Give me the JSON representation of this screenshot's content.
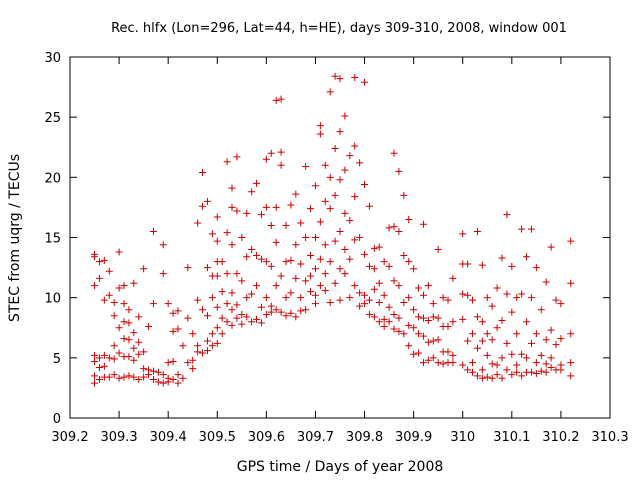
{
  "chart_data": {
    "type": "scatter",
    "title": "Rec. hlfx (Lon=296, Lat=44, h=HE), days 309-310, 2008, window 001",
    "xlabel": "GPS time / Days of year 2008",
    "ylabel": "STEC from uqrg / TECUs",
    "xlim": [
      309.2,
      310.3
    ],
    "ylim": [
      0,
      30
    ],
    "xticks": [
      309.2,
      309.3,
      309.4,
      309.5,
      309.6,
      309.7,
      309.8,
      309.9,
      310,
      310.1,
      310.2,
      310.3
    ],
    "xtick_labels": [
      "309.2",
      "309.3",
      "309.4",
      "309.5",
      "309.6",
      "309.7",
      "309.8",
      "309.9",
      "310",
      "310.1",
      "310.2",
      "310.3"
    ],
    "yticks": [
      0,
      5,
      10,
      15,
      20,
      25,
      30
    ],
    "ytick_labels": [
      "0",
      "5",
      "10",
      "15",
      "20",
      "25",
      "30"
    ],
    "grid": false,
    "marker": "+",
    "color": "#cc0000",
    "points": [
      [
        309.25,
        13.6
      ],
      [
        309.25,
        13.4
      ],
      [
        309.25,
        11.0
      ],
      [
        309.25,
        5.2
      ],
      [
        309.25,
        4.7
      ],
      [
        309.25,
        3.5
      ],
      [
        309.25,
        2.9
      ],
      [
        309.26,
        13.0
      ],
      [
        309.26,
        11.6
      ],
      [
        309.26,
        5.0
      ],
      [
        309.26,
        4.2
      ],
      [
        309.26,
        3.2
      ],
      [
        309.27,
        13.1
      ],
      [
        309.27,
        9.8
      ],
      [
        309.27,
        5.2
      ],
      [
        309.27,
        4.3
      ],
      [
        309.27,
        3.4
      ],
      [
        309.28,
        12.2
      ],
      [
        309.28,
        10.2
      ],
      [
        309.28,
        5.0
      ],
      [
        309.28,
        3.4
      ],
      [
        309.29,
        9.6
      ],
      [
        309.29,
        8.5
      ],
      [
        309.29,
        6.0
      ],
      [
        309.29,
        4.9
      ],
      [
        309.29,
        3.6
      ],
      [
        309.3,
        13.8
      ],
      [
        309.3,
        10.8
      ],
      [
        309.3,
        7.5
      ],
      [
        309.3,
        5.4
      ],
      [
        309.3,
        3.3
      ],
      [
        309.31,
        11.0
      ],
      [
        309.31,
        9.5
      ],
      [
        309.31,
        8.0
      ],
      [
        309.31,
        6.6
      ],
      [
        309.31,
        5.1
      ],
      [
        309.31,
        3.4
      ],
      [
        309.32,
        9.0
      ],
      [
        309.32,
        7.9
      ],
      [
        309.32,
        6.5
      ],
      [
        309.32,
        5.1
      ],
      [
        309.32,
        3.5
      ],
      [
        309.33,
        11.2
      ],
      [
        309.33,
        7.1
      ],
      [
        309.33,
        5.8
      ],
      [
        309.33,
        4.8
      ],
      [
        309.33,
        3.4
      ],
      [
        309.34,
        8.4
      ],
      [
        309.34,
        6.3
      ],
      [
        309.34,
        5.3
      ],
      [
        309.34,
        3.2
      ],
      [
        309.35,
        12.4
      ],
      [
        309.35,
        5.5
      ],
      [
        309.35,
        4.1
      ],
      [
        309.35,
        3.4
      ],
      [
        309.36,
        7.6
      ],
      [
        309.36,
        4.0
      ],
      [
        309.36,
        3.6
      ],
      [
        309.37,
        15.5
      ],
      [
        309.37,
        9.5
      ],
      [
        309.37,
        3.9
      ],
      [
        309.37,
        3.2
      ],
      [
        309.38,
        3.8
      ],
      [
        309.38,
        3.0
      ],
      [
        309.39,
        14.4
      ],
      [
        309.39,
        12.0
      ],
      [
        309.39,
        3.6
      ],
      [
        309.39,
        2.9
      ],
      [
        309.4,
        9.5
      ],
      [
        309.4,
        4.6
      ],
      [
        309.4,
        3.3
      ],
      [
        309.4,
        3.0
      ],
      [
        309.41,
        8.7
      ],
      [
        309.41,
        7.2
      ],
      [
        309.41,
        4.7
      ],
      [
        309.41,
        3.2
      ],
      [
        309.42,
        8.9
      ],
      [
        309.42,
        7.4
      ],
      [
        309.42,
        3.6
      ],
      [
        309.42,
        2.9
      ],
      [
        309.43,
        6.0
      ],
      [
        309.43,
        3.3
      ],
      [
        309.44,
        12.5
      ],
      [
        309.44,
        8.3
      ],
      [
        309.44,
        4.6
      ],
      [
        309.45,
        7.0
      ],
      [
        309.45,
        4.8
      ],
      [
        309.45,
        4.1
      ],
      [
        309.46,
        16.2
      ],
      [
        309.46,
        9.8
      ],
      [
        309.46,
        6.0
      ],
      [
        309.46,
        5.5
      ],
      [
        309.47,
        20.4
      ],
      [
        309.47,
        17.6
      ],
      [
        309.47,
        9.0
      ],
      [
        309.47,
        5.4
      ],
      [
        309.48,
        18.0
      ],
      [
        309.48,
        12.5
      ],
      [
        309.48,
        8.5
      ],
      [
        309.48,
        6.4
      ],
      [
        309.48,
        5.6
      ],
      [
        309.49,
        15.3
      ],
      [
        309.49,
        11.8
      ],
      [
        309.49,
        10.0
      ],
      [
        309.49,
        7.0
      ],
      [
        309.49,
        6.0
      ],
      [
        309.5,
        16.7
      ],
      [
        309.5,
        14.7
      ],
      [
        309.5,
        13.0
      ],
      [
        309.5,
        11.8
      ],
      [
        309.5,
        9.2
      ],
      [
        309.5,
        7.5
      ],
      [
        309.5,
        6.2
      ],
      [
        309.51,
        13.0
      ],
      [
        309.51,
        10.5
      ],
      [
        309.51,
        8.3
      ],
      [
        309.51,
        7.0
      ],
      [
        309.52,
        21.3
      ],
      [
        309.52,
        15.4
      ],
      [
        309.52,
        12.0
      ],
      [
        309.52,
        9.5
      ],
      [
        309.52,
        8.0
      ],
      [
        309.53,
        19.1
      ],
      [
        309.53,
        17.5
      ],
      [
        309.53,
        14.4
      ],
      [
        309.53,
        10.4
      ],
      [
        309.53,
        9.0
      ],
      [
        309.53,
        7.7
      ],
      [
        309.54,
        21.7
      ],
      [
        309.54,
        17.2
      ],
      [
        309.54,
        12.0
      ],
      [
        309.54,
        9.4
      ],
      [
        309.54,
        8.3
      ],
      [
        309.55,
        15.0
      ],
      [
        309.55,
        11.4
      ],
      [
        309.55,
        8.6
      ],
      [
        309.55,
        7.8
      ],
      [
        309.56,
        17.0
      ],
      [
        309.56,
        13.4
      ],
      [
        309.56,
        10.0
      ],
      [
        309.56,
        8.4
      ],
      [
        309.57,
        18.8
      ],
      [
        309.57,
        14.0
      ],
      [
        309.57,
        10.3
      ],
      [
        309.57,
        8.0
      ],
      [
        309.58,
        19.5
      ],
      [
        309.58,
        13.5
      ],
      [
        309.58,
        11.0
      ],
      [
        309.58,
        8.2
      ],
      [
        309.59,
        16.9
      ],
      [
        309.59,
        13.2
      ],
      [
        309.59,
        9.2
      ],
      [
        309.59,
        7.9
      ],
      [
        309.6,
        21.5
      ],
      [
        309.6,
        17.5
      ],
      [
        309.6,
        13.0
      ],
      [
        309.6,
        10.0
      ],
      [
        309.6,
        8.6
      ],
      [
        309.61,
        22.0
      ],
      [
        309.61,
        16.0
      ],
      [
        309.61,
        12.6
      ],
      [
        309.61,
        9.3
      ],
      [
        309.61,
        8.8
      ],
      [
        309.62,
        26.4
      ],
      [
        309.62,
        17.5
      ],
      [
        309.62,
        14.6
      ],
      [
        309.62,
        11.0
      ],
      [
        309.62,
        9.0
      ],
      [
        309.63,
        26.5
      ],
      [
        309.63,
        22.1
      ],
      [
        309.63,
        21.0
      ],
      [
        309.63,
        11.8
      ],
      [
        309.63,
        8.8
      ],
      [
        309.64,
        16.0
      ],
      [
        309.64,
        13.0
      ],
      [
        309.64,
        10.0
      ],
      [
        309.64,
        8.5
      ],
      [
        309.65,
        17.7
      ],
      [
        309.65,
        13.1
      ],
      [
        309.65,
        10.4
      ],
      [
        309.65,
        8.7
      ],
      [
        309.66,
        18.6
      ],
      [
        309.66,
        14.4
      ],
      [
        309.66,
        11.6
      ],
      [
        309.66,
        8.4
      ],
      [
        309.67,
        16.2
      ],
      [
        309.67,
        12.8
      ],
      [
        309.67,
        10.0
      ],
      [
        309.67,
        8.9
      ],
      [
        309.68,
        20.9
      ],
      [
        309.68,
        15.0
      ],
      [
        309.68,
        11.4
      ],
      [
        309.68,
        9.0
      ],
      [
        309.69,
        17.4
      ],
      [
        309.69,
        13.5
      ],
      [
        309.69,
        11.8
      ],
      [
        309.69,
        10.5
      ],
      [
        309.7,
        19.3
      ],
      [
        309.7,
        15.0
      ],
      [
        309.7,
        12.4
      ],
      [
        309.7,
        10.2
      ],
      [
        309.7,
        9.5
      ],
      [
        309.71,
        24.3
      ],
      [
        309.71,
        23.6
      ],
      [
        309.71,
        16.3
      ],
      [
        309.71,
        13.2
      ],
      [
        309.71,
        11.0
      ],
      [
        309.72,
        21.0
      ],
      [
        309.72,
        18.0
      ],
      [
        309.72,
        14.4
      ],
      [
        309.72,
        12.0
      ],
      [
        309.72,
        10.6
      ],
      [
        309.73,
        27.1
      ],
      [
        309.73,
        20.0
      ],
      [
        309.73,
        17.4
      ],
      [
        309.73,
        13.0
      ],
      [
        309.73,
        9.6
      ],
      [
        309.74,
        28.4
      ],
      [
        309.74,
        22.4
      ],
      [
        309.74,
        18.5
      ],
      [
        309.74,
        14.7
      ],
      [
        309.74,
        11.2
      ],
      [
        309.75,
        28.2
      ],
      [
        309.75,
        23.8
      ],
      [
        309.75,
        19.8
      ],
      [
        309.75,
        15.5
      ],
      [
        309.75,
        12.4
      ],
      [
        309.75,
        9.8
      ],
      [
        309.76,
        25.1
      ],
      [
        309.76,
        20.6
      ],
      [
        309.76,
        17.0
      ],
      [
        309.76,
        14.0
      ],
      [
        309.76,
        12.0
      ],
      [
        309.77,
        21.8
      ],
      [
        309.77,
        16.4
      ],
      [
        309.77,
        13.2
      ],
      [
        309.77,
        10.0
      ],
      [
        309.78,
        28.3
      ],
      [
        309.78,
        22.6
      ],
      [
        309.78,
        18.4
      ],
      [
        309.78,
        14.8
      ],
      [
        309.78,
        11.0
      ],
      [
        309.79,
        21.2
      ],
      [
        309.79,
        15.0
      ],
      [
        309.79,
        10.4
      ],
      [
        309.79,
        9.3
      ],
      [
        309.8,
        27.9
      ],
      [
        309.8,
        19.4
      ],
      [
        309.8,
        13.6
      ],
      [
        309.8,
        10.2
      ],
      [
        309.8,
        9.5
      ],
      [
        309.81,
        17.6
      ],
      [
        309.81,
        12.6
      ],
      [
        309.81,
        9.8
      ],
      [
        309.81,
        8.6
      ],
      [
        309.82,
        14.1
      ],
      [
        309.82,
        12.4
      ],
      [
        309.82,
        10.7
      ],
      [
        309.82,
        8.4
      ],
      [
        309.83,
        14.2
      ],
      [
        309.83,
        11.2
      ],
      [
        309.83,
        9.6
      ],
      [
        309.83,
        8.0
      ],
      [
        309.84,
        13.0
      ],
      [
        309.84,
        10.2
      ],
      [
        309.84,
        8.2
      ],
      [
        309.84,
        7.6
      ],
      [
        309.85,
        15.8
      ],
      [
        309.85,
        12.6
      ],
      [
        309.85,
        9.2
      ],
      [
        309.85,
        8.0
      ],
      [
        309.86,
        22.0
      ],
      [
        309.86,
        15.9
      ],
      [
        309.86,
        11.4
      ],
      [
        309.86,
        8.6
      ],
      [
        309.86,
        7.4
      ],
      [
        309.87,
        20.5
      ],
      [
        309.87,
        15.5
      ],
      [
        309.87,
        11.0
      ],
      [
        309.87,
        8.3
      ],
      [
        309.87,
        7.2
      ],
      [
        309.88,
        18.5
      ],
      [
        309.88,
        13.5
      ],
      [
        309.88,
        9.6
      ],
      [
        309.88,
        7.0
      ],
      [
        309.89,
        16.5
      ],
      [
        309.89,
        13.0
      ],
      [
        309.89,
        10.0
      ],
      [
        309.89,
        7.7
      ],
      [
        309.89,
        6.0
      ],
      [
        309.9,
        12.4
      ],
      [
        309.9,
        9.0
      ],
      [
        309.9,
        7.5
      ],
      [
        309.9,
        5.3
      ],
      [
        309.91,
        10.8
      ],
      [
        309.91,
        8.4
      ],
      [
        309.91,
        7.0
      ],
      [
        309.91,
        5.4
      ],
      [
        309.92,
        16.1
      ],
      [
        309.92,
        10.2
      ],
      [
        309.92,
        8.3
      ],
      [
        309.92,
        6.8
      ],
      [
        309.92,
        4.6
      ],
      [
        309.93,
        11.0
      ],
      [
        309.93,
        8.1
      ],
      [
        309.93,
        6.3
      ],
      [
        309.93,
        4.8
      ],
      [
        309.94,
        9.5
      ],
      [
        309.94,
        8.4
      ],
      [
        309.94,
        6.4
      ],
      [
        309.94,
        5.0
      ],
      [
        309.95,
        14.0
      ],
      [
        309.95,
        8.3
      ],
      [
        309.95,
        6.5
      ],
      [
        309.95,
        4.6
      ],
      [
        309.96,
        10.0
      ],
      [
        309.96,
        7.6
      ],
      [
        309.96,
        5.5
      ],
      [
        309.96,
        4.5
      ],
      [
        309.97,
        9.8
      ],
      [
        309.97,
        7.6
      ],
      [
        309.97,
        5.5
      ],
      [
        309.97,
        4.6
      ],
      [
        309.98,
        11.6
      ],
      [
        309.98,
        8.0
      ],
      [
        309.98,
        5.2
      ],
      [
        309.98,
        4.6
      ],
      [
        310.0,
        15.3
      ],
      [
        310.0,
        12.8
      ],
      [
        310.0,
        10.3
      ],
      [
        310.0,
        8.2
      ],
      [
        310.0,
        4.4
      ],
      [
        310.01,
        12.8
      ],
      [
        310.01,
        10.2
      ],
      [
        310.01,
        6.4
      ],
      [
        310.01,
        4.0
      ],
      [
        310.02,
        9.8
      ],
      [
        310.02,
        7.0
      ],
      [
        310.02,
        4.6
      ],
      [
        310.02,
        3.8
      ],
      [
        310.03,
        15.5
      ],
      [
        310.03,
        8.4
      ],
      [
        310.03,
        5.8
      ],
      [
        310.03,
        3.5
      ],
      [
        310.04,
        12.7
      ],
      [
        310.04,
        8.0
      ],
      [
        310.04,
        6.4
      ],
      [
        310.04,
        4.0
      ],
      [
        310.04,
        3.3
      ],
      [
        310.05,
        10.0
      ],
      [
        310.05,
        7.0
      ],
      [
        310.05,
        5.2
      ],
      [
        310.05,
        3.4
      ],
      [
        310.06,
        9.3
      ],
      [
        310.06,
        6.5
      ],
      [
        310.06,
        4.5
      ],
      [
        310.06,
        3.3
      ],
      [
        310.07,
        10.8
      ],
      [
        310.07,
        7.5
      ],
      [
        310.07,
        4.4
      ],
      [
        310.07,
        3.6
      ],
      [
        310.08,
        13.3
      ],
      [
        310.08,
        8.1
      ],
      [
        310.08,
        5.0
      ],
      [
        310.08,
        3.3
      ],
      [
        310.09,
        16.9
      ],
      [
        310.09,
        10.3
      ],
      [
        310.09,
        6.2
      ],
      [
        310.09,
        4.0
      ],
      [
        310.1,
        12.6
      ],
      [
        310.1,
        8.8
      ],
      [
        310.1,
        5.3
      ],
      [
        310.1,
        3.6
      ],
      [
        310.11,
        10.0
      ],
      [
        310.11,
        7.0
      ],
      [
        310.11,
        4.4
      ],
      [
        310.11,
        3.8
      ],
      [
        310.12,
        15.7
      ],
      [
        310.12,
        10.3
      ],
      [
        310.12,
        5.3
      ],
      [
        310.12,
        3.5
      ],
      [
        310.13,
        13.4
      ],
      [
        310.13,
        8.0
      ],
      [
        310.13,
        5.0
      ],
      [
        310.13,
        3.8
      ],
      [
        310.14,
        15.7
      ],
      [
        310.14,
        10.0
      ],
      [
        310.14,
        6.2
      ],
      [
        310.14,
        3.8
      ],
      [
        310.15,
        12.5
      ],
      [
        310.15,
        7.0
      ],
      [
        310.15,
        4.6
      ],
      [
        310.15,
        3.7
      ],
      [
        310.16,
        9.0
      ],
      [
        310.16,
        5.2
      ],
      [
        310.16,
        3.9
      ],
      [
        310.17,
        11.3
      ],
      [
        310.17,
        6.5
      ],
      [
        310.17,
        4.5
      ],
      [
        310.17,
        3.8
      ],
      [
        310.18,
        14.2
      ],
      [
        310.18,
        7.3
      ],
      [
        310.18,
        5.0
      ],
      [
        310.18,
        4.2
      ],
      [
        310.19,
        9.8
      ],
      [
        310.19,
        6.1
      ],
      [
        310.19,
        4.0
      ],
      [
        310.2,
        9.5
      ],
      [
        310.2,
        6.6
      ],
      [
        310.2,
        4.4
      ],
      [
        310.2,
        4.0
      ],
      [
        310.22,
        14.7
      ],
      [
        310.22,
        11.2
      ],
      [
        310.22,
        7.0
      ],
      [
        310.22,
        4.6
      ],
      [
        310.22,
        3.5
      ]
    ]
  }
}
